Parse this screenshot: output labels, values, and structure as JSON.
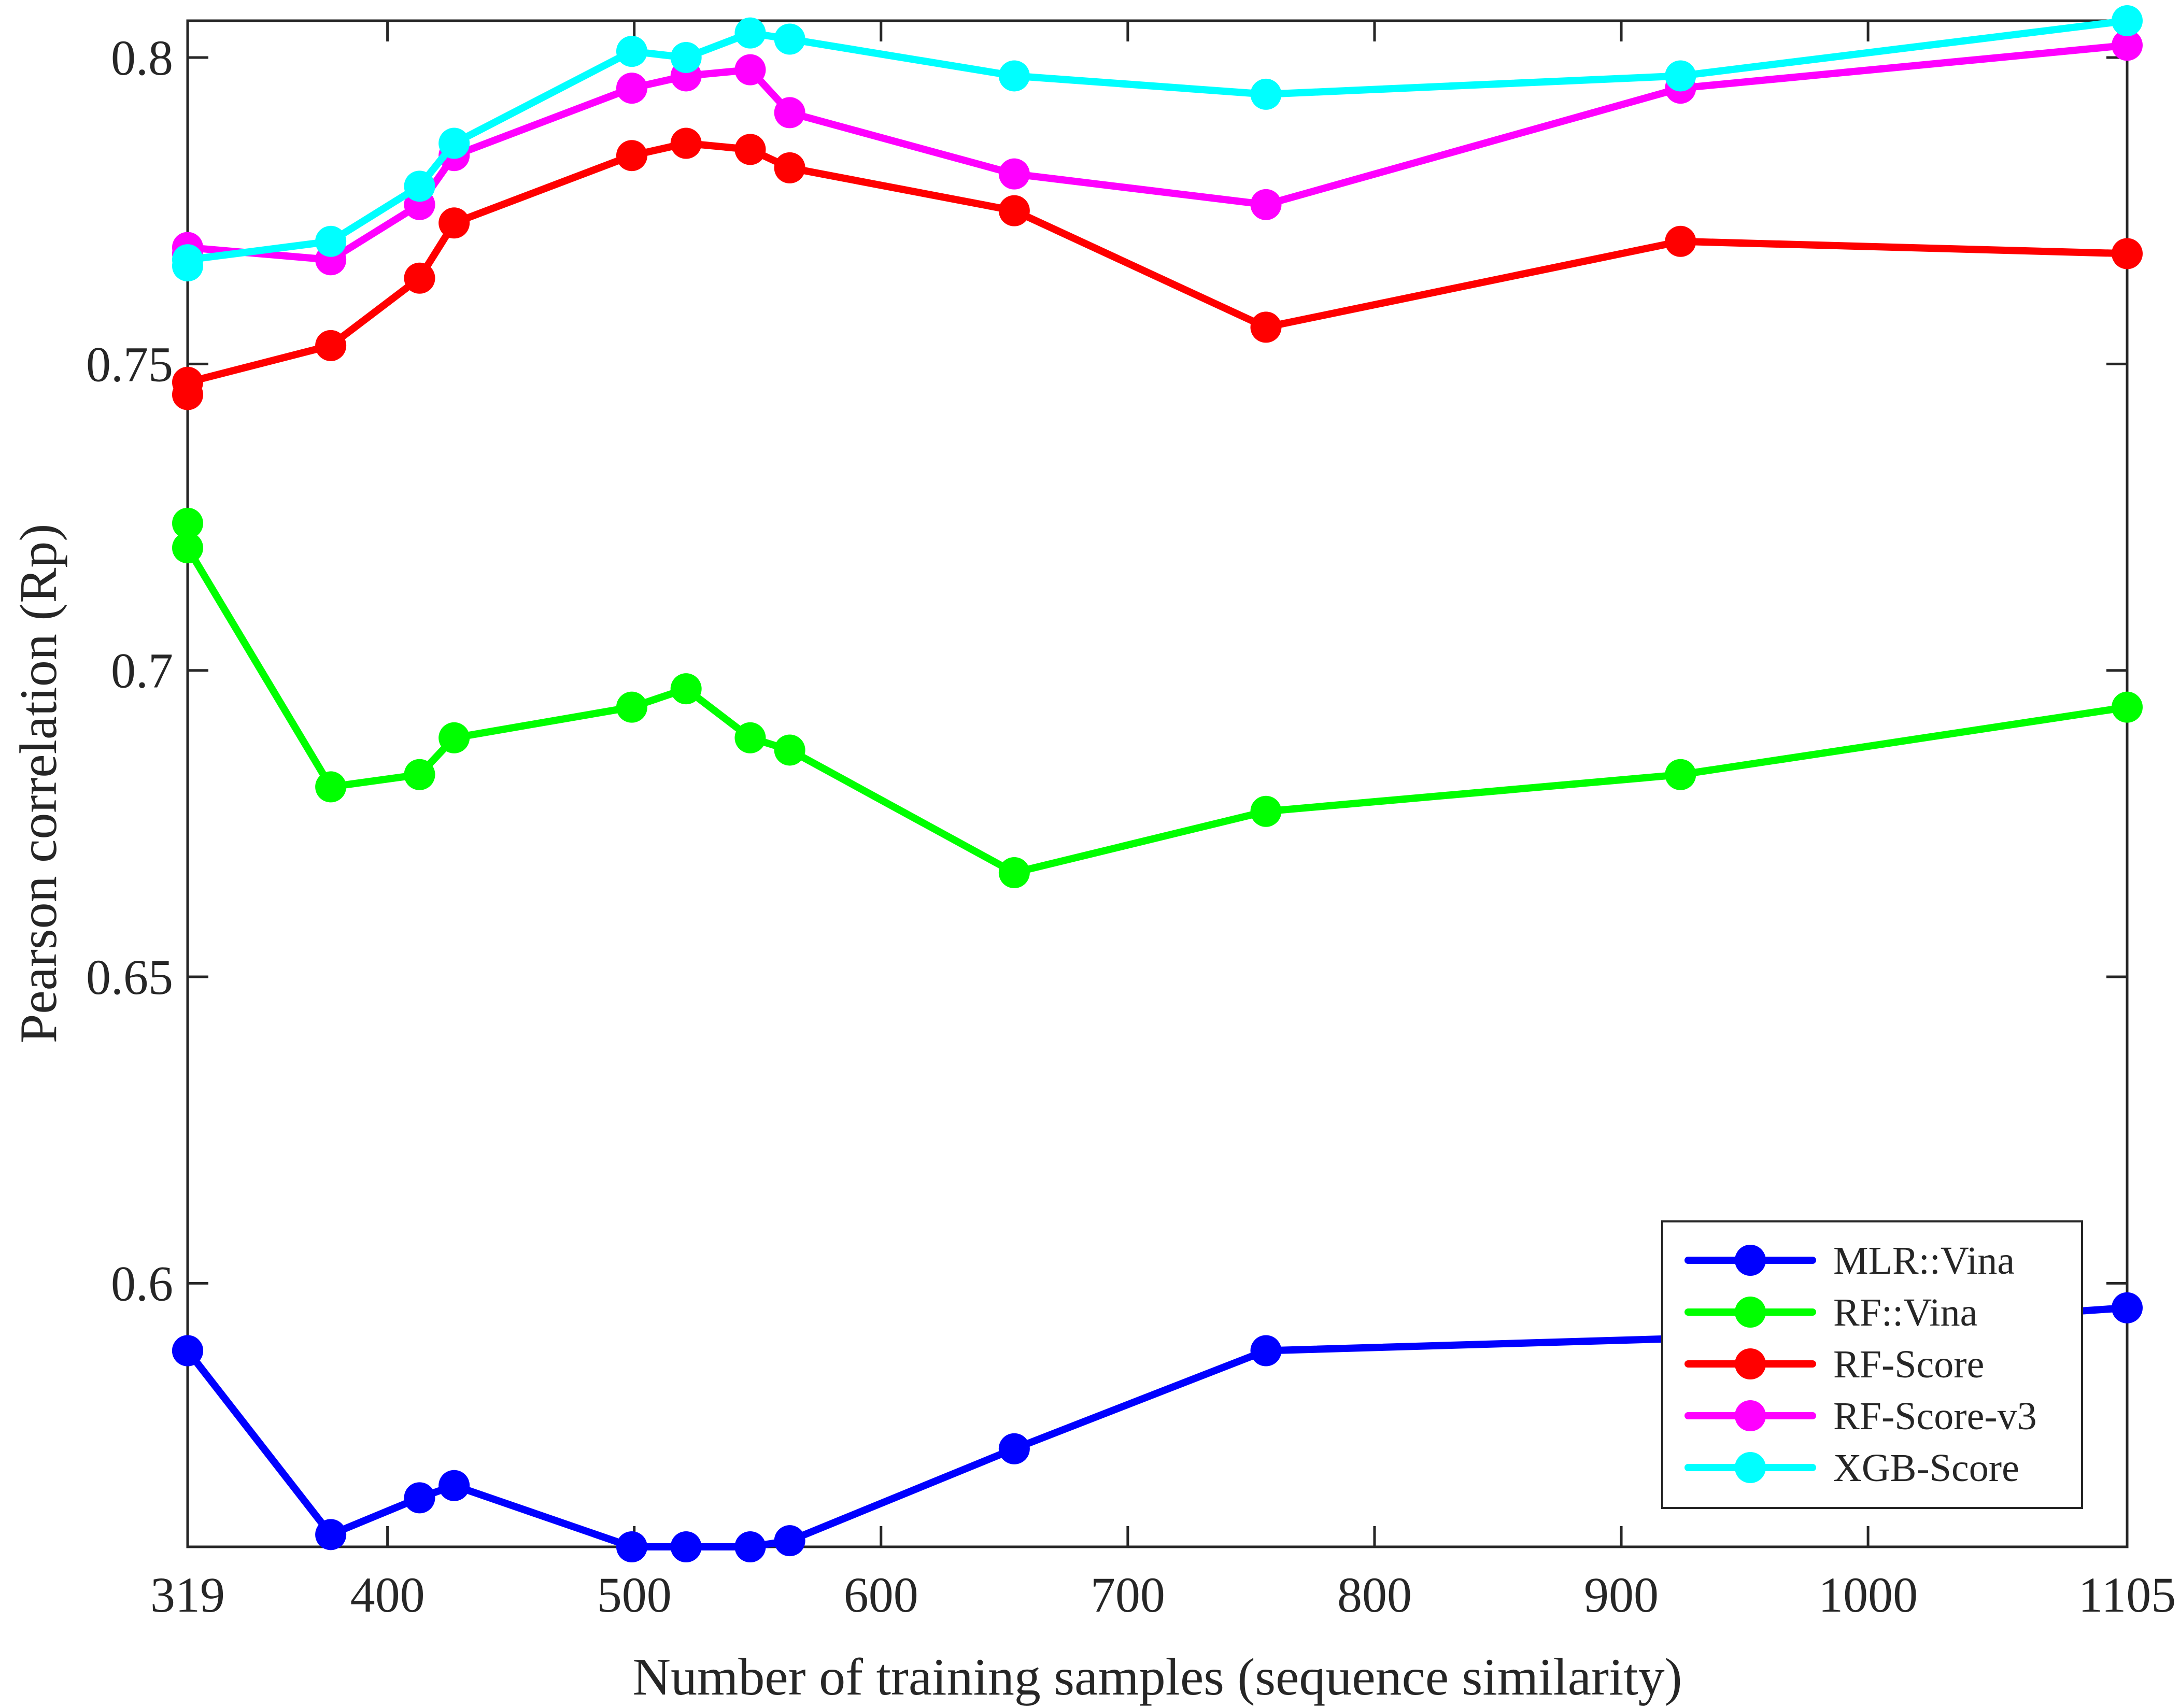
{
  "chart_data": {
    "type": "line",
    "xlabel": "Number of training samples (sequence similarity)",
    "ylabel": "Pearson correlation (Rp)",
    "xlim": [
      319,
      1105
    ],
    "ylim": [
      0.557,
      0.806
    ],
    "x_ticks": [
      319,
      400,
      500,
      600,
      700,
      800,
      900,
      1000,
      1105
    ],
    "x_tick_labels": [
      "319",
      "400",
      "500",
      "600",
      "700",
      "800",
      "900",
      "1000",
      "1105"
    ],
    "y_ticks": [
      0.6,
      0.65,
      0.7,
      0.75,
      0.8
    ],
    "y_tick_labels": [
      "0.6",
      "0.65",
      "0.7",
      "0.75",
      "0.8"
    ],
    "grid": false,
    "legend_position": "bottom-right",
    "x": [
      319,
      377,
      413,
      427,
      499,
      521,
      547,
      563,
      654,
      756,
      924,
      1105
    ],
    "series": [
      {
        "name": "MLR::Vina",
        "color": "#0000ff",
        "values": [
          0.589,
          0.559,
          0.565,
          0.567,
          0.557,
          0.557,
          0.557,
          0.558,
          0.573,
          0.589,
          0.591,
          0.596
        ]
      },
      {
        "name": "RF::Vina",
        "color": "#00ff00",
        "values": [
          0.72,
          0.681,
          0.683,
          0.689,
          0.694,
          0.697,
          0.689,
          0.687,
          0.667,
          0.677,
          0.683,
          0.694
        ]
      },
      {
        "name": "RF-Score",
        "color": "#ff0000",
        "values": [
          0.747,
          0.753,
          0.764,
          0.773,
          0.784,
          0.786,
          0.785,
          0.782,
          0.775,
          0.756,
          0.77,
          0.768
        ]
      },
      {
        "name": "RF-Score-v3",
        "color": "#ff00ff",
        "values": [
          0.769,
          0.767,
          0.776,
          0.784,
          0.795,
          0.797,
          0.798,
          0.791,
          0.781,
          0.776,
          0.795,
          0.802
        ]
      },
      {
        "name": "XGB-Score",
        "color": "#00ffff",
        "values": [
          0.767,
          0.77,
          0.779,
          0.786,
          0.801,
          0.8,
          0.804,
          0.803,
          0.797,
          0.794,
          0.797,
          0.806
        ]
      }
    ],
    "extra_points": [
      {
        "series": "MLR::Vina",
        "x": 319,
        "y": 0.589
      },
      {
        "series": "RF::Vina",
        "x": 319,
        "y": 0.724
      },
      {
        "series": "RF-Score",
        "x": 319,
        "y": 0.745
      },
      {
        "series": "RF-Score-v3",
        "x": 319,
        "y": 0.768
      },
      {
        "series": "XGB-Score",
        "x": 319,
        "y": 0.766
      }
    ]
  }
}
